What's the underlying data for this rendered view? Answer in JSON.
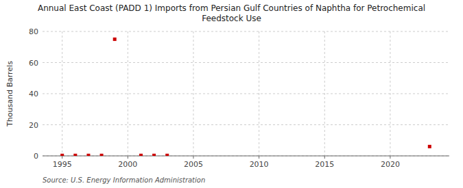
{
  "chart_data": {
    "type": "scatter",
    "title": "Annual East Coast (PADD 1) Imports from Persian Gulf Countries of Naphtha for Petrochemical\nFeedstock Use",
    "y_label": "Thousand Barrels",
    "annotations": [
      "Source: U.S. Energy Information Administration"
    ],
    "x": [
      1995,
      1996,
      1997,
      1998,
      1999,
      2001,
      2002,
      2003,
      2023
    ],
    "values": [
      0.3,
      0.3,
      0.3,
      0.3,
      75,
      0.3,
      0.3,
      0.3,
      6
    ],
    "color": "#cc0000",
    "marker": "square",
    "xlim": [
      1993.5,
      2024.5
    ],
    "xticks": [
      1995,
      2000,
      2005,
      2010,
      2015,
      2020
    ],
    "ylim": [
      0,
      80
    ],
    "yticks": [
      0,
      20,
      40,
      60,
      80
    ],
    "grid": true
  }
}
